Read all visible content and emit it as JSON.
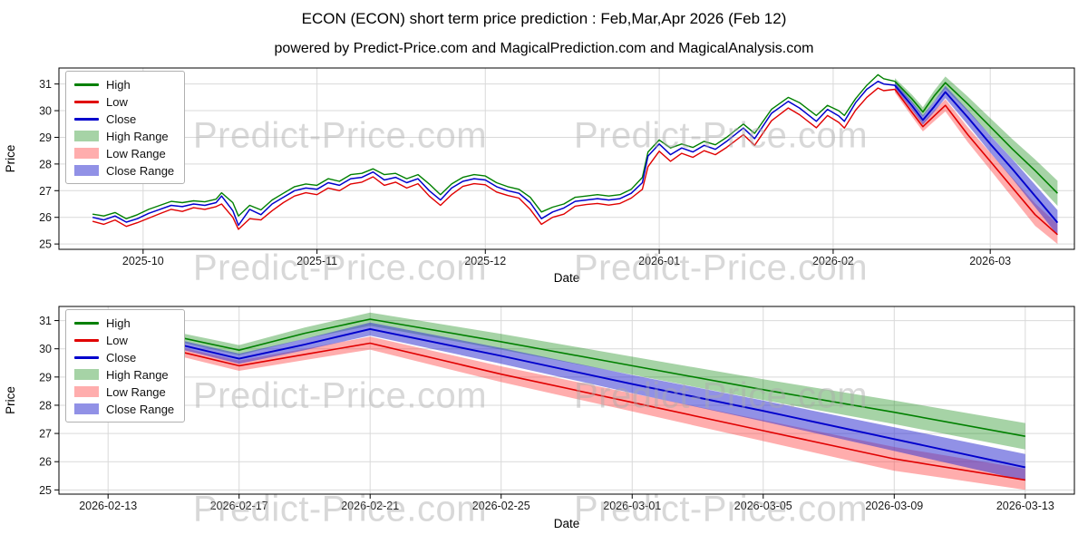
{
  "page": {
    "title": "ECON (ECON) short term price prediction : Feb,Mar,Apr 2026 (Feb 12)",
    "subtitle": "powered by Predict-Price.com and MagicalPrediction.com and MagicalAnalysis.com",
    "watermark": "Predict-Price.com"
  },
  "colors": {
    "high": "#008000",
    "low": "#e00000",
    "close": "#0000cc",
    "high_range": "rgba(0,128,0,0.35)",
    "low_range": "rgba(255,60,60,0.42)",
    "close_range": "rgba(55,55,210,0.55)"
  },
  "legend": {
    "items": [
      {
        "label": "High",
        "type": "line",
        "color_key": "high"
      },
      {
        "label": "Low",
        "type": "line",
        "color_key": "low"
      },
      {
        "label": "Close",
        "type": "line",
        "color_key": "close"
      },
      {
        "label": "High Range",
        "type": "patch",
        "color_key": "high_range"
      },
      {
        "label": "Low Range",
        "type": "patch",
        "color_key": "low_range"
      },
      {
        "label": "Close Range",
        "type": "patch",
        "color_key": "close_range"
      }
    ]
  },
  "chart_data": [
    {
      "type": "line",
      "name": "historical-and-prediction",
      "xlabel": "Date",
      "ylabel": "Price",
      "x_encoding": "day index, 0 = 2025-09-22",
      "xlim": [
        -6,
        175
      ],
      "ylim": [
        24.8,
        31.6
      ],
      "yticks": [
        25,
        26,
        27,
        28,
        29,
        30,
        31
      ],
      "xticks": [
        {
          "v": 9,
          "label": "2025-10"
        },
        {
          "v": 40,
          "label": "2025-11"
        },
        {
          "v": 70,
          "label": "2025-12"
        },
        {
          "v": 101,
          "label": "2026-01"
        },
        {
          "v": 132,
          "label": "2026-02"
        },
        {
          "v": 160,
          "label": "2026-03"
        }
      ],
      "series_history": {
        "days": [
          0,
          2,
          4,
          6,
          8,
          10,
          12,
          14,
          16,
          18,
          20,
          22,
          23,
          25,
          26,
          28,
          30,
          32,
          34,
          36,
          38,
          40,
          42,
          44,
          46,
          48,
          50,
          52,
          54,
          56,
          58,
          60,
          62,
          64,
          66,
          68,
          70,
          72,
          74,
          76,
          78,
          80,
          82,
          84,
          86,
          88,
          90,
          92,
          94,
          96,
          98,
          99,
          101,
          103,
          105,
          107,
          109,
          111,
          113,
          116,
          118,
          121,
          124,
          126,
          129,
          131,
          133,
          134,
          136,
          138,
          140,
          141,
          143
        ],
        "high": [
          26.12,
          26.05,
          26.18,
          25.95,
          26.1,
          26.3,
          26.45,
          26.6,
          26.55,
          26.62,
          26.58,
          26.68,
          26.92,
          26.55,
          26.05,
          26.45,
          26.28,
          26.65,
          26.9,
          27.15,
          27.25,
          27.2,
          27.45,
          27.35,
          27.6,
          27.65,
          27.82,
          27.6,
          27.65,
          27.45,
          27.6,
          27.25,
          26.85,
          27.25,
          27.5,
          27.6,
          27.55,
          27.3,
          27.15,
          27.05,
          26.75,
          26.2,
          26.38,
          26.5,
          26.75,
          26.8,
          26.85,
          26.8,
          26.85,
          27.05,
          27.5,
          28.45,
          28.9,
          28.6,
          28.75,
          28.62,
          28.85,
          28.72,
          29.0,
          29.5,
          29.15,
          30.05,
          30.5,
          30.3,
          29.82,
          30.2,
          30.0,
          29.82,
          30.45,
          30.95,
          31.35,
          31.2,
          31.1
        ],
        "low": [
          25.85,
          25.74,
          25.9,
          25.66,
          25.8,
          25.97,
          26.14,
          26.3,
          26.22,
          26.36,
          26.3,
          26.4,
          26.5,
          26.0,
          25.55,
          25.95,
          25.9,
          26.25,
          26.55,
          26.8,
          26.92,
          26.85,
          27.1,
          27.0,
          27.25,
          27.32,
          27.52,
          27.2,
          27.32,
          27.1,
          27.26,
          26.8,
          26.45,
          26.85,
          27.16,
          27.26,
          27.22,
          26.95,
          26.82,
          26.72,
          26.3,
          25.74,
          26.0,
          26.12,
          26.42,
          26.48,
          26.52,
          26.46,
          26.52,
          26.72,
          27.05,
          27.9,
          28.48,
          28.1,
          28.4,
          28.25,
          28.5,
          28.35,
          28.62,
          29.1,
          28.7,
          29.62,
          30.1,
          29.85,
          29.36,
          29.82,
          29.56,
          29.35,
          30.02,
          30.5,
          30.85,
          30.75,
          30.8
        ],
        "close": [
          26.0,
          25.9,
          26.05,
          25.82,
          25.95,
          26.15,
          26.3,
          26.45,
          26.4,
          26.5,
          26.45,
          26.55,
          26.8,
          26.25,
          25.7,
          26.3,
          26.1,
          26.5,
          26.75,
          27.0,
          27.1,
          27.05,
          27.3,
          27.2,
          27.45,
          27.5,
          27.7,
          27.4,
          27.5,
          27.3,
          27.45,
          27.0,
          26.65,
          27.1,
          27.35,
          27.45,
          27.4,
          27.15,
          27.0,
          26.9,
          26.55,
          25.95,
          26.2,
          26.35,
          26.6,
          26.65,
          26.7,
          26.65,
          26.7,
          26.9,
          27.3,
          28.3,
          28.75,
          28.35,
          28.6,
          28.45,
          28.7,
          28.55,
          28.85,
          29.35,
          28.95,
          29.9,
          30.35,
          30.1,
          29.6,
          30.05,
          29.8,
          29.6,
          30.3,
          30.8,
          31.1,
          31.0,
          30.95
        ]
      },
      "series_prediction": {
        "days": [
          143,
          146,
          148,
          150,
          152,
          156,
          160,
          164,
          168,
          172
        ],
        "high": [
          31.1,
          30.45,
          29.95,
          30.55,
          31.05,
          30.25,
          29.4,
          28.55,
          27.75,
          26.9
        ],
        "low": [
          30.8,
          29.95,
          29.4,
          29.8,
          30.2,
          29.1,
          28.1,
          27.1,
          26.1,
          25.35
        ],
        "close": [
          30.95,
          30.2,
          29.65,
          30.15,
          30.7,
          29.75,
          28.75,
          27.8,
          26.8,
          25.8
        ],
        "high_upper": [
          31.22,
          30.61,
          30.13,
          30.75,
          31.28,
          30.53,
          29.72,
          28.92,
          28.17,
          27.37
        ],
        "high_lower": [
          30.98,
          30.29,
          29.77,
          30.35,
          30.82,
          29.97,
          29.08,
          28.18,
          27.33,
          26.43
        ],
        "close_upper": [
          31.07,
          30.36,
          29.83,
          30.35,
          30.93,
          30.03,
          29.07,
          28.17,
          27.22,
          26.27
        ],
        "close_lower": [
          30.83,
          30.04,
          29.47,
          29.95,
          30.47,
          29.47,
          28.43,
          27.43,
          26.38,
          25.33
        ],
        "low_upper": [
          30.92,
          30.11,
          29.58,
          30.0,
          30.43,
          29.38,
          28.42,
          27.47,
          26.52,
          25.75
        ],
        "low_lower": [
          30.68,
          29.79,
          29.22,
          29.6,
          29.97,
          28.82,
          27.78,
          26.73,
          25.68,
          25.0
        ]
      }
    },
    {
      "type": "line",
      "name": "prediction-zoom",
      "xlabel": "Date",
      "ylabel": "Price",
      "x_encoding": "day index, 0 = 2025-09-22",
      "xlim": [
        142.5,
        173.5
      ],
      "ylim": [
        24.85,
        31.5
      ],
      "yticks": [
        25,
        26,
        27,
        28,
        29,
        30,
        31
      ],
      "xticks": [
        {
          "v": 144,
          "label": "2026-02-13"
        },
        {
          "v": 148,
          "label": "2026-02-17"
        },
        {
          "v": 152,
          "label": "2026-02-21"
        },
        {
          "v": 156,
          "label": "2026-02-25"
        },
        {
          "v": 160,
          "label": "2026-03-01"
        },
        {
          "v": 164,
          "label": "2026-03-05"
        },
        {
          "v": 168,
          "label": "2026-03-09"
        },
        {
          "v": 172,
          "label": "2026-03-13"
        }
      ],
      "series_prediction": {
        "days": [
          143,
          146,
          148,
          150,
          152,
          156,
          160,
          164,
          168,
          172
        ],
        "high": [
          31.1,
          30.45,
          29.95,
          30.55,
          31.05,
          30.25,
          29.4,
          28.55,
          27.75,
          26.9
        ],
        "low": [
          30.8,
          29.95,
          29.4,
          29.8,
          30.2,
          29.1,
          28.1,
          27.1,
          26.1,
          25.35
        ],
        "close": [
          30.95,
          30.2,
          29.65,
          30.15,
          30.7,
          29.75,
          28.75,
          27.8,
          26.8,
          25.8
        ],
        "high_upper": [
          31.22,
          30.61,
          30.13,
          30.75,
          31.28,
          30.53,
          29.72,
          28.92,
          28.17,
          27.37
        ],
        "high_lower": [
          30.98,
          30.29,
          29.77,
          30.35,
          30.82,
          29.97,
          29.08,
          28.18,
          27.33,
          26.43
        ],
        "close_upper": [
          31.07,
          30.36,
          29.83,
          30.35,
          30.93,
          30.03,
          29.07,
          28.17,
          27.22,
          26.27
        ],
        "close_lower": [
          30.83,
          30.04,
          29.47,
          29.95,
          30.47,
          29.47,
          28.43,
          27.43,
          26.38,
          25.33
        ],
        "low_upper": [
          30.92,
          30.11,
          29.58,
          30.0,
          30.43,
          29.38,
          28.42,
          27.47,
          26.52,
          25.75
        ],
        "low_lower": [
          30.68,
          29.79,
          29.22,
          29.6,
          29.97,
          28.82,
          27.78,
          26.73,
          25.68,
          25.0
        ]
      }
    }
  ]
}
